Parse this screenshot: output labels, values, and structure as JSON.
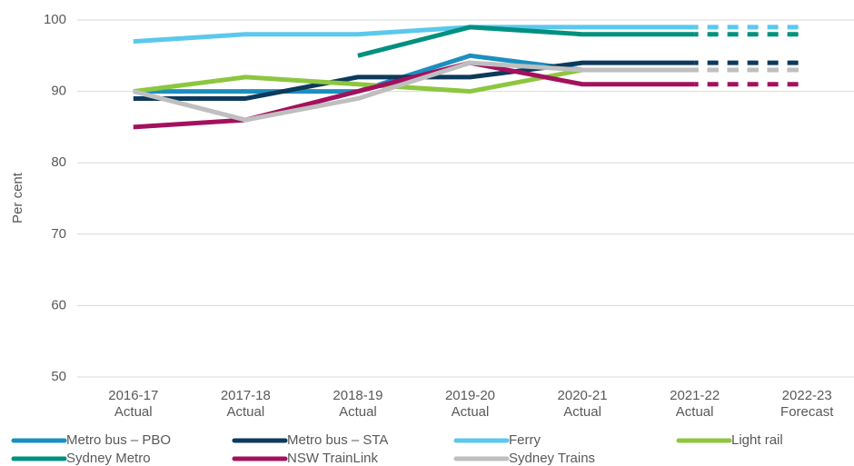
{
  "chart_data": {
    "type": "line",
    "y_label": "Per cent",
    "categories": [
      "2016-17\nActual",
      "2017-18\nActual",
      "2018-19\nActual",
      "2019-20\nActual",
      "2020-21\nActual",
      "2021-22\nActual",
      "2022-23\nForecast"
    ],
    "series": [
      {
        "name": "Metro bus – PBO",
        "color": "#1b8fbf",
        "values": [
          90,
          90,
          90,
          95,
          93,
          93,
          93
        ]
      },
      {
        "name": "Metro bus – STA",
        "color": "#0d3a5c",
        "values": [
          89,
          89,
          92,
          92,
          94,
          94,
          94
        ]
      },
      {
        "name": "Ferry",
        "color": "#5bc8ec",
        "values": [
          97,
          98,
          98,
          99,
          99,
          99,
          99
        ]
      },
      {
        "name": "Light rail",
        "color": "#8dc63f",
        "values": [
          90,
          92,
          91,
          90,
          93,
          93,
          93
        ]
      },
      {
        "name": "Sydney Metro",
        "color": "#00907f",
        "values": [
          null,
          null,
          95,
          99,
          98,
          98,
          98
        ]
      },
      {
        "name": "NSW TrainLink",
        "color": "#a3115e",
        "values": [
          85,
          86,
          90,
          94,
          91,
          91,
          91
        ]
      },
      {
        "name": "Sydney Trains",
        "color": "#bfbfbf",
        "values": [
          90,
          86,
          89,
          94,
          93,
          93,
          93
        ]
      }
    ],
    "ylim": [
      50,
      100
    ],
    "yticks": [
      50,
      60,
      70,
      80,
      90,
      100
    ],
    "grid": true,
    "dashed_last_segment": true,
    "legend": "bottom"
  }
}
